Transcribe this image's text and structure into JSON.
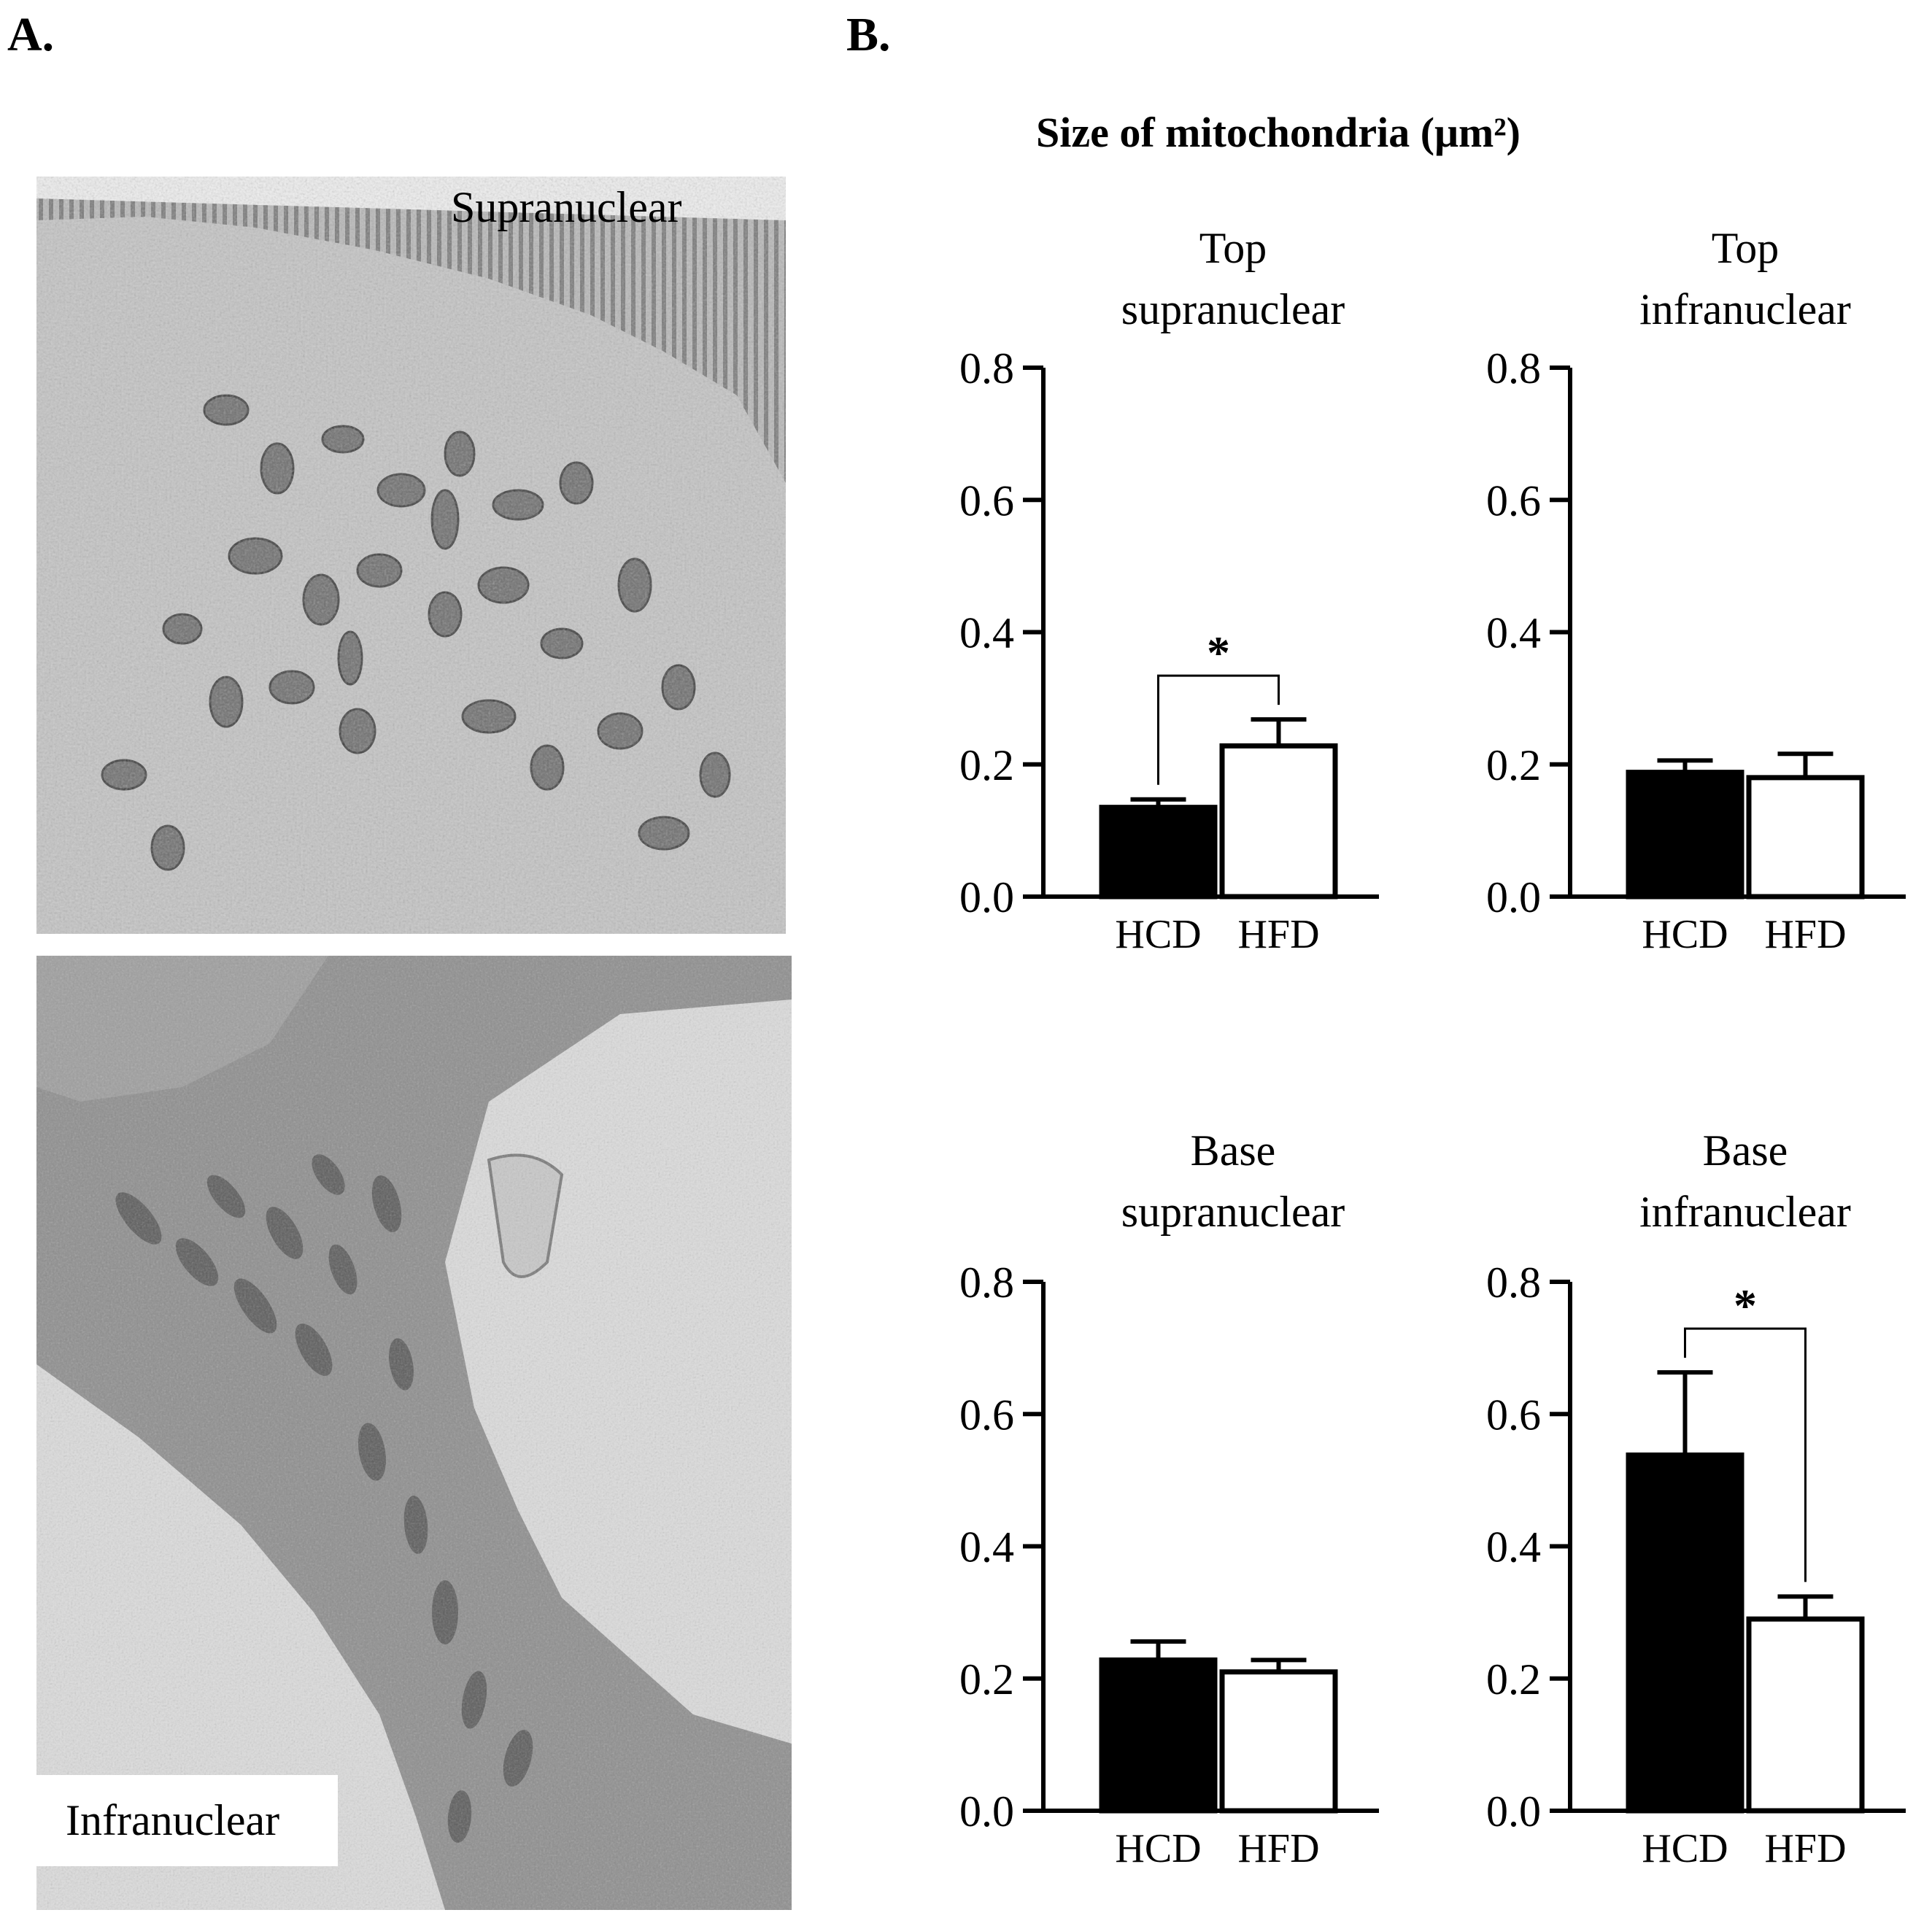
{
  "figure": {
    "panel_a_label": "A.",
    "panel_b_label": "B.",
    "title": "Size of mitochondria (μm²)"
  },
  "micrographs": {
    "top_caption": "Supranuclear",
    "bottom_caption": "Infranuclear"
  },
  "colors": {
    "hcd_fill": "#000000",
    "hfd_fill": "#ffffff",
    "axis": "#000000"
  },
  "chart_data": [
    {
      "type": "bar",
      "title": "Top supranuclear",
      "title_lines": [
        "Top",
        "supranuclear"
      ],
      "categories": [
        "HCD",
        "HFD"
      ],
      "values": [
        0.135,
        0.228
      ],
      "errors": [
        0.012,
        0.04
      ],
      "ylim": [
        0,
        0.8
      ],
      "yticks": [
        "0.0",
        "0.2",
        "0.4",
        "0.6",
        "0.8"
      ],
      "xlabel": "",
      "ylabel": "",
      "significance": "*"
    },
    {
      "type": "bar",
      "title": "Top infranuclear",
      "title_lines": [
        "Top",
        "infranuclear"
      ],
      "categories": [
        "HCD",
        "HFD"
      ],
      "values": [
        0.188,
        0.18
      ],
      "errors": [
        0.018,
        0.036
      ],
      "ylim": [
        0,
        0.8
      ],
      "yticks": [
        "0.0",
        "0.2",
        "0.4",
        "0.6",
        "0.8"
      ],
      "xlabel": "",
      "ylabel": "",
      "significance": ""
    },
    {
      "type": "bar",
      "title": "Base supranuclear",
      "title_lines": [
        "Base",
        "supranuclear"
      ],
      "categories": [
        "HCD",
        "HFD"
      ],
      "values": [
        0.228,
        0.21
      ],
      "errors": [
        0.028,
        0.018
      ],
      "ylim": [
        0,
        0.8
      ],
      "yticks": [
        "0.0",
        "0.2",
        "0.4",
        "0.6",
        "0.8"
      ],
      "xlabel": "",
      "ylabel": "",
      "significance": ""
    },
    {
      "type": "bar",
      "title": "Base infranuclear",
      "title_lines": [
        "Base",
        "infranuclear"
      ],
      "categories": [
        "HCD",
        "HFD"
      ],
      "values": [
        0.538,
        0.29
      ],
      "errors": [
        0.125,
        0.034
      ],
      "ylim": [
        0,
        0.8
      ],
      "yticks": [
        "0.0",
        "0.2",
        "0.4",
        "0.6",
        "0.8"
      ],
      "xlabel": "",
      "ylabel": "",
      "significance": "*"
    }
  ]
}
